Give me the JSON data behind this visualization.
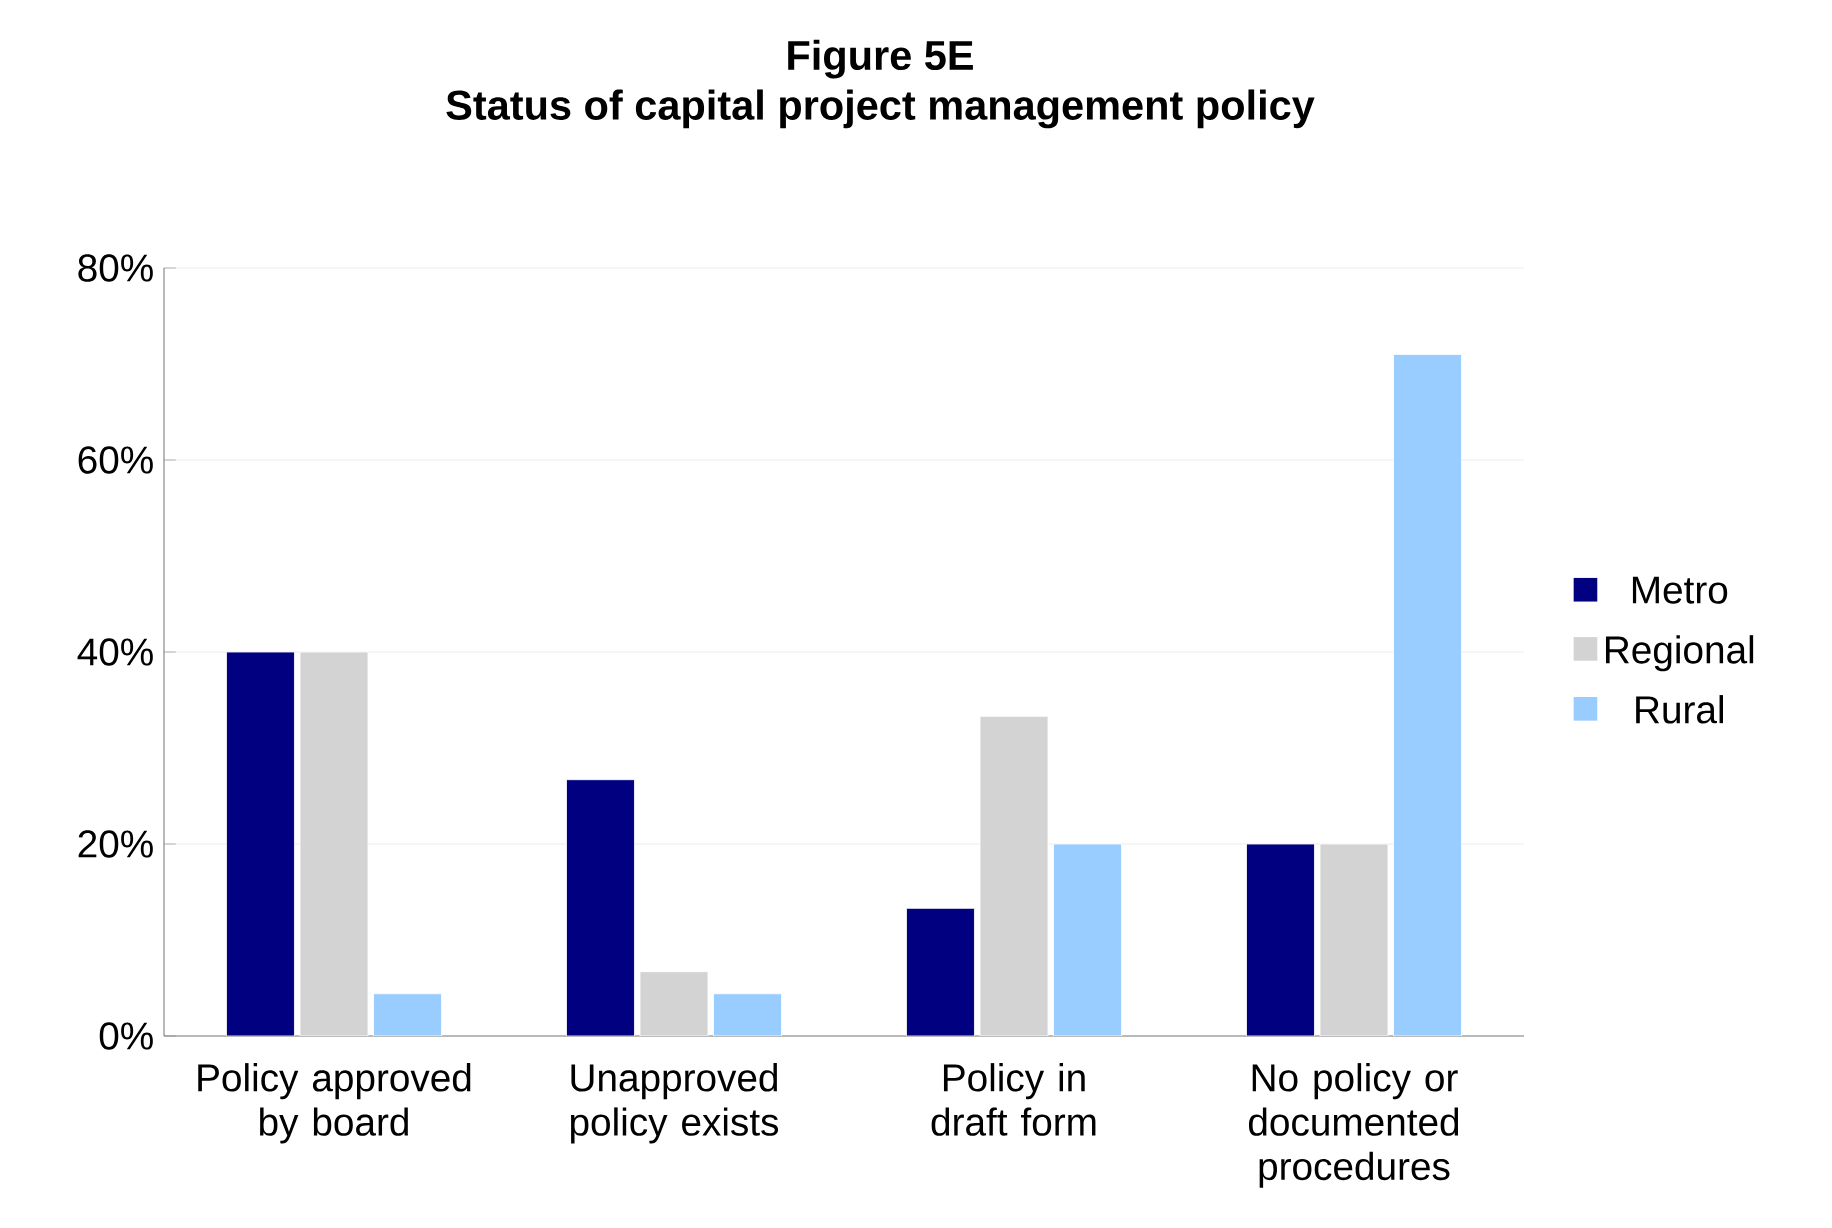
{
  "chart_data": {
    "type": "bar",
    "title": "Figure 5E",
    "subtitle": "Status of capital project management policy",
    "categories": [
      "Policy approved by board",
      "Unapproved policy exists",
      "Policy in draft form",
      "No policy or documented procedures"
    ],
    "series": [
      {
        "name": "Metro",
        "color": "#000080",
        "values": [
          40,
          26.7,
          13.3,
          20
        ]
      },
      {
        "name": "Regional",
        "color": "#d3d3d3",
        "values": [
          40,
          6.7,
          33.3,
          20
        ]
      },
      {
        "name": "Rural",
        "color": "#99ccff",
        "values": [
          4.4,
          4.4,
          20,
          71
        ]
      }
    ],
    "ylim": [
      0,
      80
    ],
    "yticks": [
      {
        "value": 0,
        "label": "0%"
      },
      {
        "value": 20,
        "label": "20%"
      },
      {
        "value": 40,
        "label": "40%"
      },
      {
        "value": 60,
        "label": "60%"
      },
      {
        "value": 80,
        "label": "80%"
      }
    ],
    "grid": "y",
    "legend": "right"
  }
}
